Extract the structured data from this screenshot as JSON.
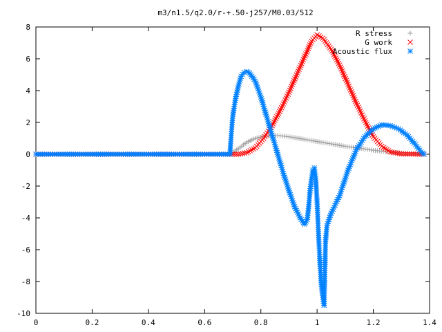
{
  "chart_data": {
    "type": "scatter",
    "title": "m3/n1.5/q2.0/r-+.50-j257/M0.03/512",
    "xlabel": "",
    "ylabel": "",
    "xlim": [
      0,
      1.4
    ],
    "ylim": [
      -10,
      8
    ],
    "xticks": [
      {
        "value": 0,
        "label": "0"
      },
      {
        "value": 0.2,
        "label": "0.2"
      },
      {
        "value": 0.4,
        "label": "0.4"
      },
      {
        "value": 0.6,
        "label": "0.6"
      },
      {
        "value": 0.8,
        "label": "0.8"
      },
      {
        "value": 1,
        "label": "1"
      },
      {
        "value": 1.2,
        "label": "1.2"
      },
      {
        "value": 1.4,
        "label": "1.4"
      }
    ],
    "yticks": [
      {
        "value": -10,
        "label": "-10"
      },
      {
        "value": -8,
        "label": "-8"
      },
      {
        "value": -6,
        "label": "-6"
      },
      {
        "value": -4,
        "label": "-4"
      },
      {
        "value": -2,
        "label": "-2"
      },
      {
        "value": 0,
        "label": "0"
      },
      {
        "value": 2,
        "label": "2"
      },
      {
        "value": 4,
        "label": "4"
      },
      {
        "value": 6,
        "label": "6"
      },
      {
        "value": 8,
        "label": "8"
      }
    ],
    "grid": false,
    "legend_position": "top-right",
    "series": [
      {
        "name": "R stress",
        "marker": "plus",
        "color": "#a0a0a0",
        "points": [
          [
            0,
            0
          ],
          [
            0.2,
            0
          ],
          [
            0.4,
            0
          ],
          [
            0.6,
            0
          ],
          [
            0.69,
            0
          ],
          [
            0.72,
            0.35
          ],
          [
            0.75,
            0.75
          ],
          [
            0.78,
            1.0
          ],
          [
            0.82,
            1.15
          ],
          [
            0.86,
            1.18
          ],
          [
            0.9,
            1.1
          ],
          [
            0.95,
            0.95
          ],
          [
            1.0,
            0.8
          ],
          [
            1.05,
            0.65
          ],
          [
            1.1,
            0.5
          ],
          [
            1.15,
            0.38
          ],
          [
            1.2,
            0.25
          ],
          [
            1.25,
            0.15
          ],
          [
            1.3,
            0.07
          ],
          [
            1.35,
            0.02
          ],
          [
            1.38,
            0
          ]
        ]
      },
      {
        "name": "G work",
        "marker": "cross",
        "color": "#ff0000",
        "points": [
          [
            0,
            0
          ],
          [
            0.2,
            0
          ],
          [
            0.4,
            0
          ],
          [
            0.6,
            0
          ],
          [
            0.69,
            0
          ],
          [
            0.72,
            0
          ],
          [
            0.75,
            0.1
          ],
          [
            0.78,
            0.4
          ],
          [
            0.81,
            1.0
          ],
          [
            0.84,
            1.8
          ],
          [
            0.87,
            2.8
          ],
          [
            0.9,
            3.9
          ],
          [
            0.93,
            5.1
          ],
          [
            0.96,
            6.3
          ],
          [
            0.98,
            7.1
          ],
          [
            1.0,
            7.5
          ],
          [
            1.02,
            7.3
          ],
          [
            1.05,
            6.6
          ],
          [
            1.08,
            5.6
          ],
          [
            1.11,
            4.4
          ],
          [
            1.14,
            3.2
          ],
          [
            1.17,
            2.1
          ],
          [
            1.2,
            1.1
          ],
          [
            1.23,
            0.5
          ],
          [
            1.26,
            0.15
          ],
          [
            1.3,
            0.02
          ],
          [
            1.38,
            0
          ]
        ]
      },
      {
        "name": "Acoustic flux",
        "marker": "star",
        "color": "#0080ff",
        "points": [
          [
            0,
            0
          ],
          [
            0.2,
            0
          ],
          [
            0.4,
            0
          ],
          [
            0.6,
            0
          ],
          [
            0.69,
            0
          ],
          [
            0.695,
            1.3
          ],
          [
            0.7,
            2.4
          ],
          [
            0.71,
            3.5
          ],
          [
            0.72,
            4.3
          ],
          [
            0.73,
            4.9
          ],
          [
            0.74,
            5.15
          ],
          [
            0.75,
            5.2
          ],
          [
            0.76,
            5.1
          ],
          [
            0.78,
            4.6
          ],
          [
            0.8,
            3.6
          ],
          [
            0.82,
            2.4
          ],
          [
            0.84,
            1.2
          ],
          [
            0.86,
            0
          ],
          [
            0.88,
            -1.2
          ],
          [
            0.9,
            -2.3
          ],
          [
            0.92,
            -3.3
          ],
          [
            0.94,
            -4.0
          ],
          [
            0.955,
            -4.4
          ],
          [
            0.965,
            -4.1
          ],
          [
            0.97,
            -3.3
          ],
          [
            0.975,
            -2.3
          ],
          [
            0.98,
            -1.6
          ],
          [
            0.985,
            -1.0
          ],
          [
            0.99,
            -0.85
          ],
          [
            0.995,
            -1.5
          ],
          [
            1.0,
            -3.0
          ],
          [
            1.005,
            -5.0
          ],
          [
            1.01,
            -6.8
          ],
          [
            1.015,
            -8.2
          ],
          [
            1.02,
            -9.0
          ],
          [
            1.025,
            -9.5
          ],
          [
            1.03,
            -5.5
          ],
          [
            1.035,
            -4.5
          ],
          [
            1.05,
            -3.7
          ],
          [
            1.08,
            -2.6
          ],
          [
            1.11,
            -1.0
          ],
          [
            1.14,
            0.3
          ],
          [
            1.17,
            1.1
          ],
          [
            1.2,
            1.6
          ],
          [
            1.23,
            1.85
          ],
          [
            1.26,
            1.8
          ],
          [
            1.29,
            1.6
          ],
          [
            1.32,
            1.2
          ],
          [
            1.35,
            0.6
          ],
          [
            1.37,
            0.15
          ],
          [
            1.38,
            0
          ]
        ]
      }
    ]
  },
  "legend": {
    "entries": [
      {
        "label": "R stress",
        "color": "#a0a0a0",
        "marker": "plus"
      },
      {
        "label": "G work",
        "color": "#ff0000",
        "marker": "cross"
      },
      {
        "label": "Acoustic flux",
        "color": "#0080ff",
        "marker": "star"
      }
    ]
  }
}
